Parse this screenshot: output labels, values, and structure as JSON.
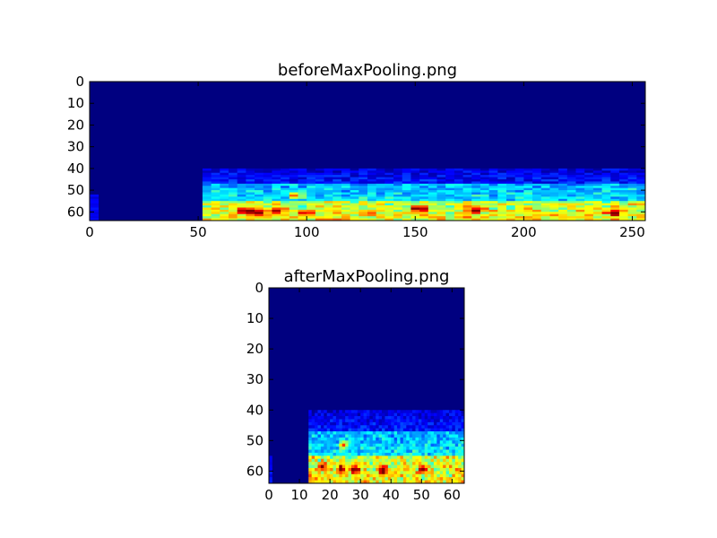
{
  "chart_data": [
    {
      "type": "heatmap",
      "title": "beforeMaxPooling.png",
      "xlabel": "",
      "ylabel": "",
      "xlim": [
        0,
        256
      ],
      "ylim": [
        64,
        0
      ],
      "x_ticks": [
        "0",
        "50",
        "100",
        "150",
        "200",
        "250"
      ],
      "y_ticks": [
        "0",
        "10",
        "20",
        "30",
        "40",
        "50",
        "60"
      ],
      "colormap": "jet",
      "grid": false,
      "rows": 64,
      "cols": 256,
      "signal": {
        "x_start": 52,
        "x_end": 256,
        "y_start": 40,
        "y_end": 64,
        "bright_band_rows": [
          55,
          63
        ],
        "hotspots": [
          [
            93,
            52
          ],
          [
            98,
            60
          ],
          [
            85,
            59
          ],
          [
            70,
            59
          ],
          [
            75,
            60
          ],
          [
            150,
            58
          ],
          [
            175,
            59
          ],
          [
            240,
            60
          ]
        ]
      },
      "left_edge_strip": {
        "x_start": 0,
        "x_end": 3,
        "y_start": 52,
        "y_end": 64
      }
    },
    {
      "type": "heatmap",
      "title": "afterMaxPooling.png",
      "xlabel": "",
      "ylabel": "",
      "xlim": [
        0,
        64
      ],
      "ylim": [
        64,
        0
      ],
      "x_ticks": [
        "0",
        "10",
        "20",
        "30",
        "40",
        "50",
        "60"
      ],
      "y_ticks": [
        "0",
        "10",
        "20",
        "30",
        "40",
        "50",
        "60"
      ],
      "colormap": "jet",
      "grid": false,
      "rows": 64,
      "cols": 64,
      "signal": {
        "x_start": 13,
        "x_end": 64,
        "y_start": 40,
        "y_end": 64,
        "bright_band_rows": [
          55,
          63
        ],
        "hotspots": [
          [
            23,
            59
          ],
          [
            24,
            51
          ],
          [
            17,
            58
          ],
          [
            28,
            59
          ],
          [
            37,
            59
          ],
          [
            50,
            59
          ]
        ]
      },
      "left_edge_strip": {
        "x_start": 0,
        "x_end": 1,
        "y_start": 55,
        "y_end": 64
      }
    }
  ]
}
